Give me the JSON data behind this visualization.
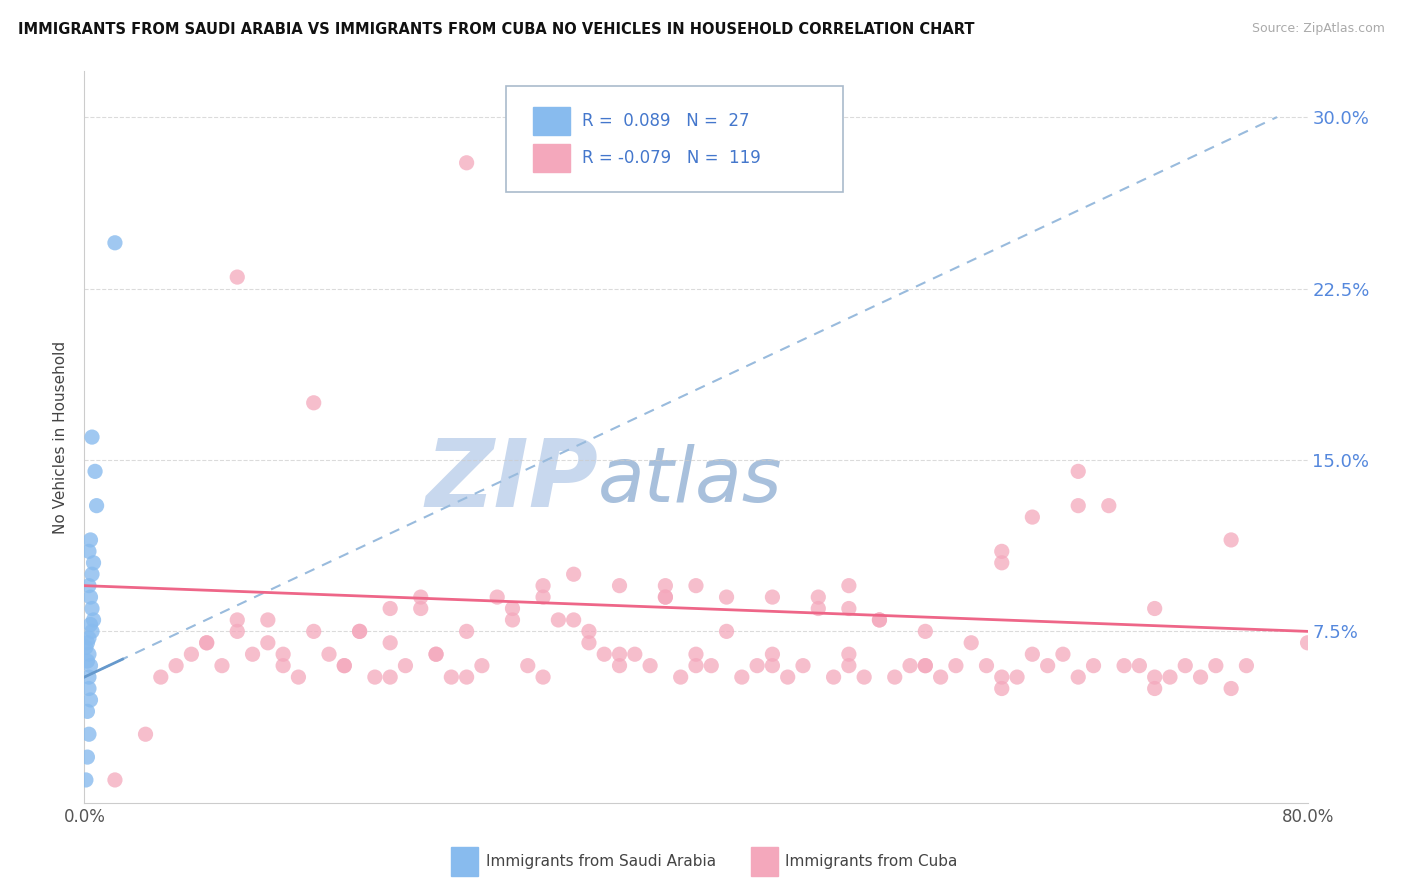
{
  "title": "IMMIGRANTS FROM SAUDI ARABIA VS IMMIGRANTS FROM CUBA NO VEHICLES IN HOUSEHOLD CORRELATION CHART",
  "source": "Source: ZipAtlas.com",
  "ylabel": "No Vehicles in Household",
  "xlim": [
    0.0,
    0.8
  ],
  "ylim": [
    0.0,
    0.32
  ],
  "yticks": [
    0.0,
    0.075,
    0.15,
    0.225,
    0.3
  ],
  "ytick_labels": [
    "",
    "7.5%",
    "15.0%",
    "22.5%",
    "30.0%"
  ],
  "xticks": [
    0.0,
    0.1,
    0.2,
    0.3,
    0.4,
    0.5,
    0.6,
    0.7,
    0.8
  ],
  "xtick_labels": [
    "0.0%",
    "",
    "",
    "",
    "",
    "",
    "",
    "",
    "80.0%"
  ],
  "title_color": "#111111",
  "source_color": "#aaaaaa",
  "watermark_zip": "ZIP",
  "watermark_atlas": "atlas",
  "watermark_color_zip": "#c8d8ee",
  "watermark_color_atlas": "#a8c0dc",
  "saudi_color": "#88bbee",
  "cuba_color": "#f4a8bc",
  "saudi_R": 0.089,
  "saudi_N": 27,
  "cuba_R": -0.079,
  "cuba_N": 119,
  "legend_color_blue": "#4477cc",
  "legend_color_pink": "#dd4477",
  "grid_color": "#cccccc",
  "saudi_line_color": "#6699cc",
  "saudi_dash_color": "#99bbdd",
  "cuba_line_color": "#ee6688",
  "saudi_points_x": [
    0.02,
    0.005,
    0.007,
    0.008,
    0.004,
    0.003,
    0.006,
    0.005,
    0.003,
    0.004,
    0.005,
    0.006,
    0.004,
    0.005,
    0.003,
    0.002,
    0.001,
    0.003,
    0.002,
    0.004,
    0.003,
    0.003,
    0.004,
    0.002,
    0.003,
    0.002,
    0.001
  ],
  "saudi_points_y": [
    0.245,
    0.16,
    0.145,
    0.13,
    0.115,
    0.11,
    0.105,
    0.1,
    0.095,
    0.09,
    0.085,
    0.08,
    0.078,
    0.075,
    0.072,
    0.07,
    0.068,
    0.065,
    0.062,
    0.06,
    0.055,
    0.05,
    0.045,
    0.04,
    0.03,
    0.02,
    0.01
  ],
  "cuba_points_x": [
    0.02,
    0.04,
    0.05,
    0.06,
    0.07,
    0.08,
    0.09,
    0.1,
    0.11,
    0.12,
    0.13,
    0.14,
    0.15,
    0.16,
    0.17,
    0.18,
    0.19,
    0.2,
    0.21,
    0.22,
    0.23,
    0.24,
    0.25,
    0.26,
    0.27,
    0.28,
    0.29,
    0.3,
    0.31,
    0.32,
    0.33,
    0.34,
    0.35,
    0.36,
    0.37,
    0.38,
    0.39,
    0.4,
    0.41,
    0.42,
    0.43,
    0.44,
    0.45,
    0.46,
    0.47,
    0.48,
    0.49,
    0.5,
    0.51,
    0.52,
    0.53,
    0.54,
    0.55,
    0.56,
    0.57,
    0.58,
    0.59,
    0.6,
    0.61,
    0.62,
    0.63,
    0.64,
    0.65,
    0.66,
    0.67,
    0.68,
    0.69,
    0.7,
    0.71,
    0.72,
    0.73,
    0.74,
    0.75,
    0.76,
    0.1,
    0.15,
    0.2,
    0.25,
    0.3,
    0.12,
    0.18,
    0.22,
    0.28,
    0.33,
    0.38,
    0.08,
    0.13,
    0.17,
    0.23,
    0.35,
    0.45,
    0.55,
    0.65,
    0.32,
    0.42,
    0.52,
    0.62,
    0.25,
    0.35,
    0.45,
    0.55,
    0.65,
    0.75,
    0.4,
    0.5,
    0.6,
    0.7,
    0.2,
    0.3,
    0.4,
    0.5,
    0.6,
    0.7,
    0.8,
    0.1,
    0.5,
    0.6,
    0.38,
    0.48
  ],
  "cuba_points_y": [
    0.01,
    0.03,
    0.055,
    0.06,
    0.065,
    0.07,
    0.06,
    0.075,
    0.065,
    0.07,
    0.06,
    0.055,
    0.175,
    0.065,
    0.06,
    0.075,
    0.055,
    0.085,
    0.06,
    0.09,
    0.065,
    0.055,
    0.28,
    0.06,
    0.09,
    0.085,
    0.06,
    0.095,
    0.08,
    0.1,
    0.075,
    0.065,
    0.095,
    0.065,
    0.06,
    0.095,
    0.055,
    0.095,
    0.06,
    0.09,
    0.055,
    0.06,
    0.09,
    0.055,
    0.06,
    0.09,
    0.055,
    0.085,
    0.055,
    0.08,
    0.055,
    0.06,
    0.075,
    0.055,
    0.06,
    0.07,
    0.06,
    0.11,
    0.055,
    0.065,
    0.06,
    0.065,
    0.145,
    0.06,
    0.13,
    0.06,
    0.06,
    0.085,
    0.055,
    0.06,
    0.055,
    0.06,
    0.115,
    0.06,
    0.08,
    0.075,
    0.07,
    0.075,
    0.09,
    0.08,
    0.075,
    0.085,
    0.08,
    0.07,
    0.09,
    0.07,
    0.065,
    0.06,
    0.065,
    0.065,
    0.06,
    0.06,
    0.13,
    0.08,
    0.075,
    0.08,
    0.125,
    0.055,
    0.06,
    0.065,
    0.06,
    0.055,
    0.05,
    0.065,
    0.065,
    0.055,
    0.05,
    0.055,
    0.055,
    0.06,
    0.06,
    0.05,
    0.055,
    0.07,
    0.23,
    0.095,
    0.105,
    0.09,
    0.085
  ]
}
